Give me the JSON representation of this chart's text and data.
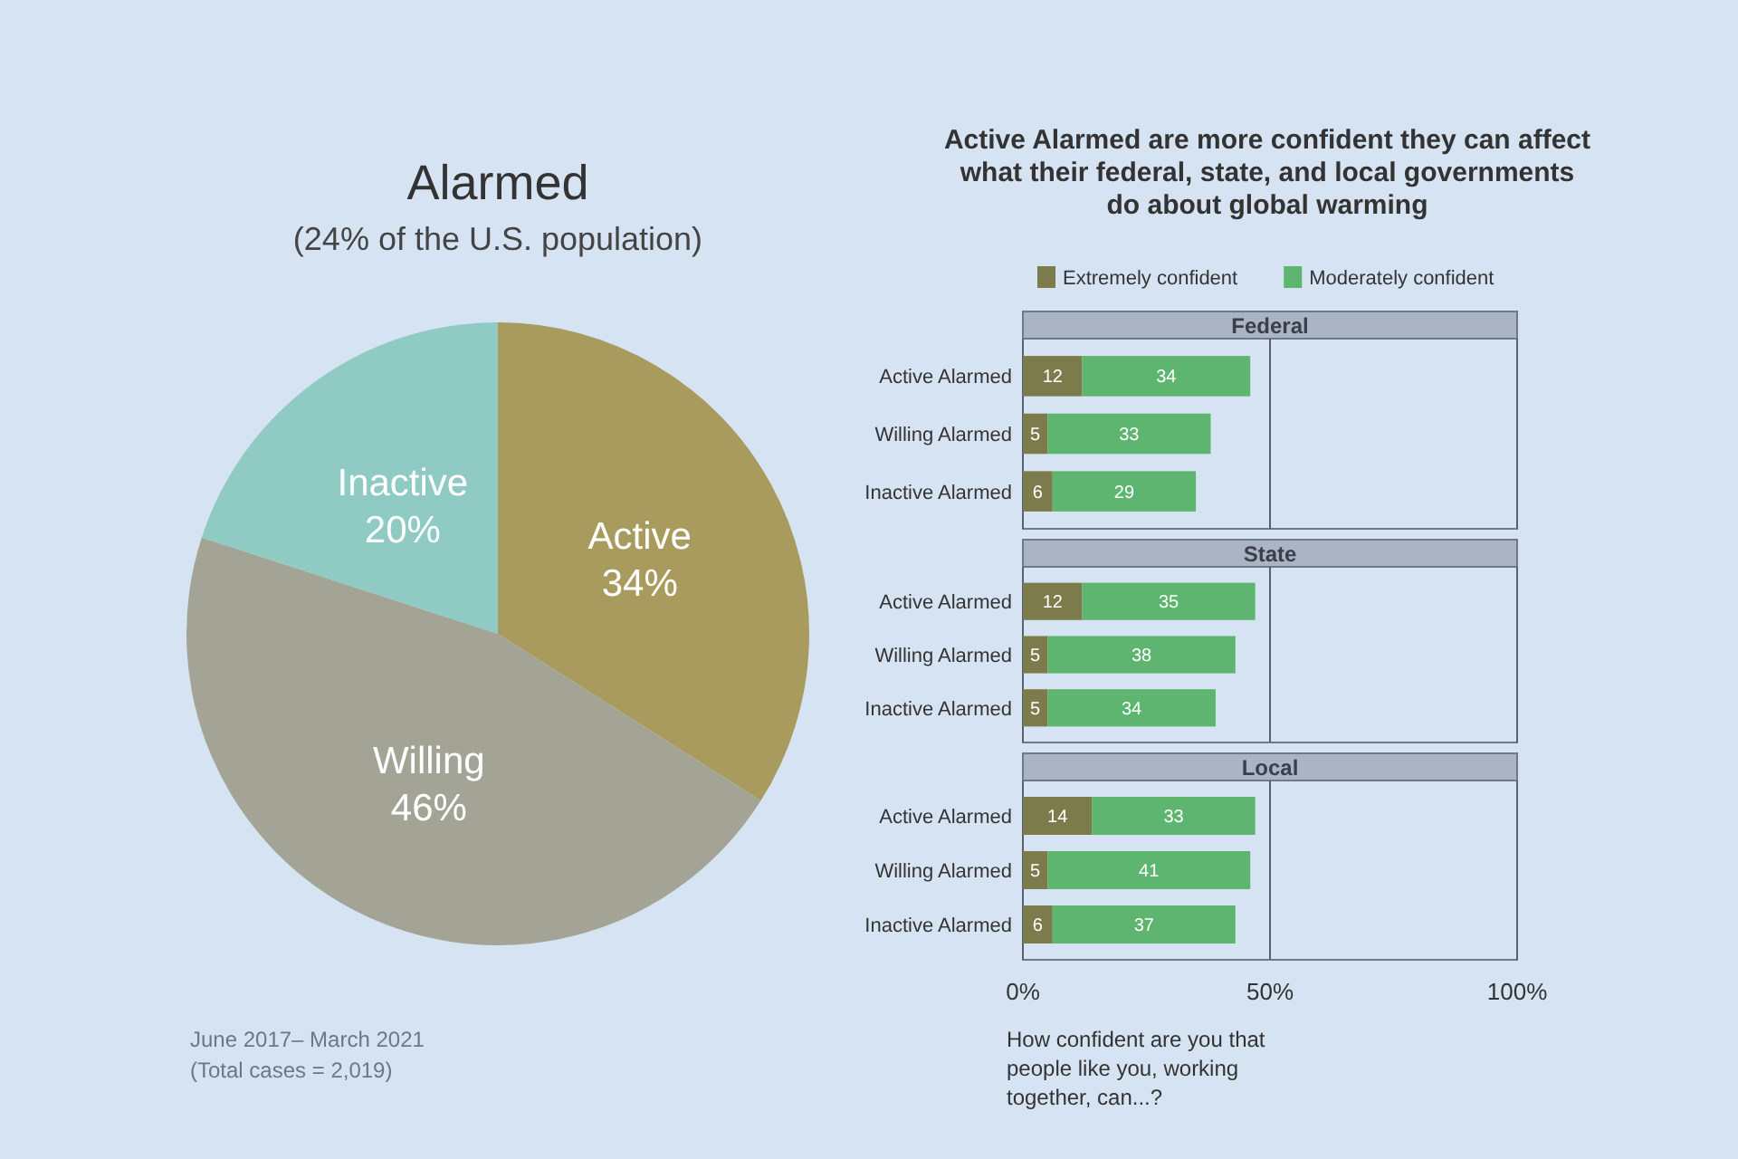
{
  "chart_data": [
    {
      "type": "pie",
      "title": "Alarmed",
      "subtitle": "(24% of the U.S. population)",
      "categories": [
        "Active",
        "Willing",
        "Inactive"
      ],
      "values": [
        34,
        46,
        20
      ],
      "value_labels": [
        "34%",
        "46%",
        "20%"
      ],
      "colors": [
        "#a99b5e",
        "#a4a496",
        "#8fcac3"
      ],
      "annotations": [
        "June 2017– March 2021",
        "(Total cases = 2,019)"
      ]
    },
    {
      "type": "bar",
      "orientation": "horizontal",
      "stacked": true,
      "title": "Active Alarmed are more confident they can affect what their federal, state, and local governments do about global warming",
      "subtitle": "Federal",
      "categories": [
        "Active Alarmed",
        "Willing Alarmed",
        "Inactive Alarmed"
      ],
      "series": [
        {
          "name": "Extremely confident",
          "color": "#7b7b4b",
          "values": [
            12,
            5,
            6
          ]
        },
        {
          "name": "Moderately confident",
          "color": "#5db56f",
          "values": [
            34,
            33,
            29
          ]
        }
      ],
      "xlim": [
        0,
        100
      ],
      "xticks": [
        0,
        50,
        100
      ],
      "grid": "x",
      "legend": "top left",
      "data_labels": true,
      "tick_labels": "y"
    },
    {
      "type": "bar",
      "orientation": "horizontal",
      "stacked": true,
      "title": "State",
      "categories": [
        "Active Alarmed",
        "Willing Alarmed",
        "Inactive Alarmed"
      ],
      "series": [
        {
          "color": "#7b7b4b",
          "values": [
            12,
            5,
            5
          ]
        },
        {
          "color": "#5db56f",
          "values": [
            35,
            38,
            34
          ]
        }
      ],
      "xlim": [
        0,
        100
      ],
      "xticks": [
        0,
        50,
        100
      ],
      "grid": "x",
      "data_labels": true,
      "tick_labels": "y"
    },
    {
      "type": "bar",
      "orientation": "horizontal",
      "stacked": true,
      "title": "Local",
      "categories": [
        "Active Alarmed",
        "Willing Alarmed",
        "Inactive Alarmed"
      ],
      "series": [
        {
          "color": "#7b7b4b",
          "values": [
            14,
            5,
            6
          ]
        },
        {
          "color": "#5db56f",
          "values": [
            33,
            41,
            37
          ]
        }
      ],
      "xlim": [
        0,
        100
      ],
      "xticks": [
        {
          "value": 0,
          "label": "0%"
        },
        {
          "value": 50,
          "label": "50%"
        },
        {
          "value": 100,
          "label": "100%"
        }
      ],
      "grid": "x",
      "data_labels": true,
      "annotations": [
        "How confident are you that people like you, working together, can...?"
      ]
    }
  ]
}
